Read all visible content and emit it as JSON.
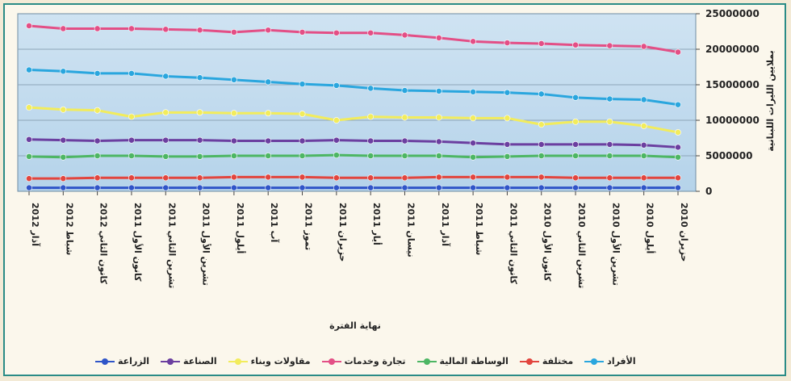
{
  "chart_data": {
    "type": "line",
    "xlabel": "نهاية الفترة",
    "ylabel": "بملايين الليرات اللبنانية",
    "ylim": [
      0,
      25000000
    ],
    "yticks": [
      "25000000",
      "20000000",
      "15000000",
      "10000000",
      "5000000",
      "0"
    ],
    "y_axis_position": "right",
    "grid": true,
    "legend_position": "bottom",
    "categories": [
      "آذار 2012",
      "شباط 2012",
      "كانون الثاني 2012",
      "كانون الأول 2011",
      "تشرين الثاني 2011",
      "تشرين الأول 2011",
      "أيلول 2011",
      "آب 2011",
      "تموز 2011",
      "حزيران 2011",
      "أيار 2011",
      "نيسان 2011",
      "آذار 2011",
      "شباط 2011",
      "كانون الثاني 2011",
      "كانون الأول 2010",
      "تشرين الثاني 2010",
      "تشرين الأول 2010",
      "أيلول 2010",
      "حزيران 2010"
    ],
    "series": [
      {
        "name": "الزراعة",
        "color": "#2f55c8",
        "values": [
          500000,
          500000,
          500000,
          500000,
          500000,
          500000,
          500000,
          500000,
          500000,
          500000,
          500000,
          500000,
          500000,
          500000,
          500000,
          500000,
          500000,
          500000,
          500000,
          500000
        ]
      },
      {
        "name": "الصناعة",
        "color": "#6b3fa0",
        "values": [
          7300000,
          7200000,
          7100000,
          7200000,
          7200000,
          7200000,
          7100000,
          7100000,
          7100000,
          7200000,
          7100000,
          7100000,
          7000000,
          6800000,
          6600000,
          6600000,
          6600000,
          6600000,
          6500000,
          6200000
        ]
      },
      {
        "name": "مقاولات وبناء",
        "color": "#f2ec5c",
        "values": [
          11800000,
          11500000,
          11400000,
          10500000,
          11100000,
          11100000,
          11000000,
          11000000,
          10900000,
          10000000,
          10500000,
          10400000,
          10400000,
          10300000,
          10300000,
          9400000,
          9800000,
          9800000,
          9200000,
          8300000
        ]
      },
      {
        "name": "تجارة وخدمات",
        "color": "#e34f86",
        "values": [
          23300000,
          22900000,
          22900000,
          22900000,
          22800000,
          22700000,
          22400000,
          22700000,
          22400000,
          22300000,
          22300000,
          22000000,
          21600000,
          21100000,
          20900000,
          20800000,
          20600000,
          20500000,
          20400000,
          19600000
        ]
      },
      {
        "name": "الوساطة المالية",
        "color": "#4db664",
        "values": [
          4900000,
          4800000,
          5000000,
          5000000,
          4900000,
          4900000,
          5000000,
          5000000,
          5000000,
          5100000,
          5000000,
          5000000,
          5000000,
          4800000,
          4900000,
          5000000,
          5000000,
          5000000,
          5000000,
          4800000
        ]
      },
      {
        "name": "مختلفة",
        "color": "#e2453e",
        "values": [
          1800000,
          1800000,
          1900000,
          1900000,
          1900000,
          1900000,
          2000000,
          2000000,
          2000000,
          1900000,
          1900000,
          1900000,
          2000000,
          2000000,
          2000000,
          2000000,
          1900000,
          1900000,
          1900000,
          1900000
        ]
      },
      {
        "name": "الأفراد",
        "color": "#2aa6de",
        "values": [
          17100000,
          16900000,
          16600000,
          16600000,
          16200000,
          16000000,
          15700000,
          15400000,
          15100000,
          14900000,
          14500000,
          14200000,
          14100000,
          14000000,
          13900000,
          13700000,
          13200000,
          13000000,
          12900000,
          12200000
        ]
      }
    ]
  }
}
